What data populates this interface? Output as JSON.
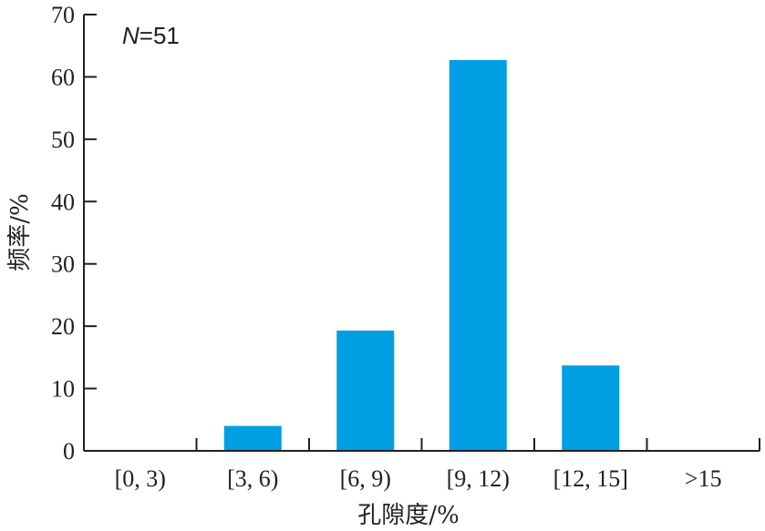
{
  "chart_data": {
    "type": "bar",
    "categories": [
      "[0, 3)",
      "[3, 6)",
      "[6, 9)",
      "[9, 12)",
      "[12, 15]",
      ">15"
    ],
    "values": [
      0,
      4,
      19.3,
      62.7,
      13.7,
      0
    ],
    "xlabel": "孔隙度/%",
    "ylabel": "频率/%",
    "ylim": [
      0,
      70
    ],
    "yticks": [
      0,
      10,
      20,
      30,
      40,
      50,
      60,
      70
    ],
    "annotation": {
      "italic": "N",
      "rest": "=51"
    },
    "bar_color": "#009fe3",
    "axis_color": "#231f20",
    "grid": false,
    "legend": "none"
  }
}
